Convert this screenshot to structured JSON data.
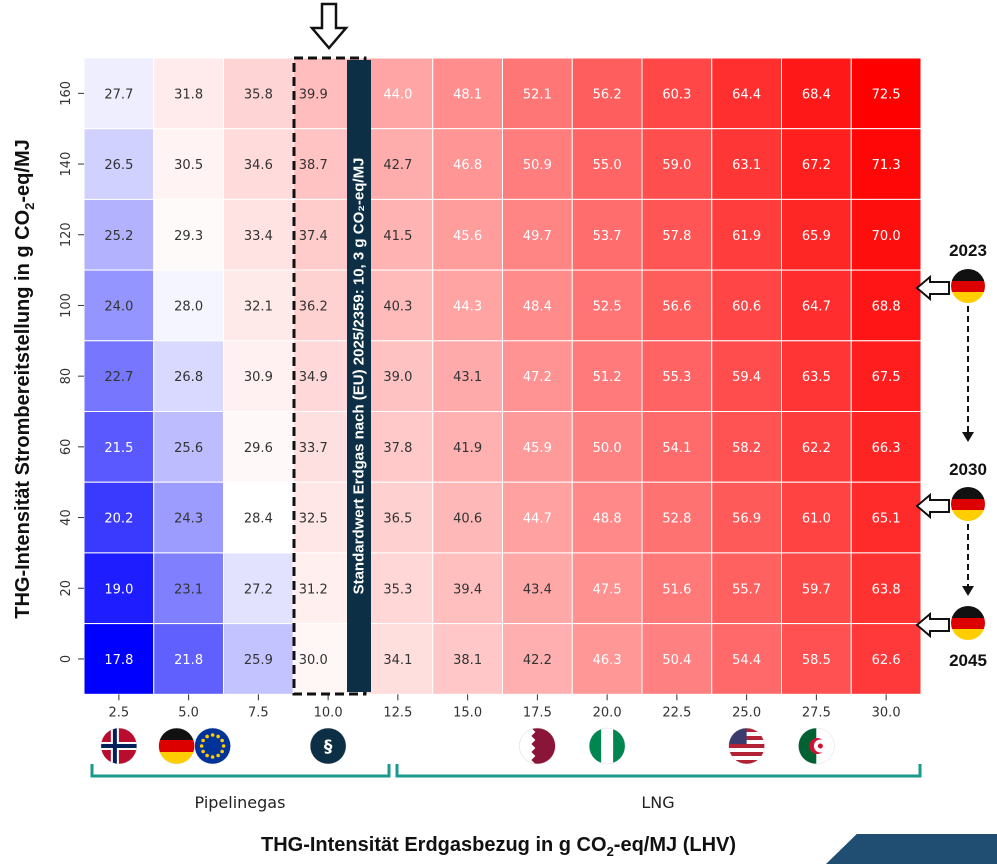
{
  "chart_data": {
    "type": "heatmap",
    "x": [
      "2.5",
      "5.0",
      "7.5",
      "10.0",
      "12.5",
      "15.0",
      "17.5",
      "20.0",
      "22.5",
      "25.0",
      "27.5",
      "30.0"
    ],
    "y": [
      "160",
      "140",
      "120",
      "100",
      "80",
      "60",
      "40",
      "20",
      "0"
    ],
    "values": [
      [
        27.7,
        31.8,
        35.8,
        39.9,
        44.0,
        48.1,
        52.1,
        56.2,
        60.3,
        64.4,
        68.4,
        72.5
      ],
      [
        26.5,
        30.5,
        34.6,
        38.7,
        42.7,
        46.8,
        50.9,
        55.0,
        59.0,
        63.1,
        67.2,
        71.3
      ],
      [
        25.2,
        29.3,
        33.4,
        37.4,
        41.5,
        45.6,
        49.7,
        53.7,
        57.8,
        61.9,
        65.9,
        70.0
      ],
      [
        24.0,
        28.0,
        32.1,
        36.2,
        40.3,
        44.3,
        48.4,
        52.5,
        56.6,
        60.6,
        64.7,
        68.8
      ],
      [
        22.7,
        26.8,
        30.9,
        34.9,
        39.0,
        43.1,
        47.2,
        51.2,
        55.3,
        59.4,
        63.5,
        67.5
      ],
      [
        21.5,
        25.6,
        29.6,
        33.7,
        37.8,
        41.9,
        45.9,
        50.0,
        54.1,
        58.2,
        62.2,
        66.3
      ],
      [
        20.2,
        24.3,
        28.4,
        32.5,
        36.5,
        40.6,
        44.7,
        48.8,
        52.8,
        56.9,
        61.0,
        65.1
      ],
      [
        19.0,
        23.1,
        27.2,
        31.2,
        35.3,
        39.4,
        43.4,
        47.5,
        51.6,
        55.7,
        59.7,
        63.8
      ],
      [
        17.8,
        21.8,
        25.9,
        30.0,
        34.1,
        38.1,
        42.2,
        46.3,
        50.4,
        54.4,
        58.5,
        62.6
      ]
    ],
    "xlabel": "THG-Intensität Erdgasbezug in g CO₂-eq/MJ (LHV)",
    "ylabel": "THG-Intensität Strombereitstellung in g CO₂-eq/MJ",
    "annotation": "Standardwert Erdgas nach (EU) 2025/2359: 10, 3 g CO₂-eq/MJ",
    "colormap": {
      "low": "#0000ff",
      "mid": "#ffffff",
      "high": "#ff0000",
      "center": 28.4
    },
    "groups": [
      {
        "label": "Pipelinegas"
      },
      {
        "label": "LNG"
      }
    ],
    "years": [
      "2023",
      "2030",
      "2045"
    ]
  },
  "flags": [
    {
      "name": "norway-flag-icon",
      "col": "2.5"
    },
    {
      "name": "germany-flag-icon",
      "col": "5.0"
    },
    {
      "name": "eu-flag-icon",
      "col": "5.0"
    },
    {
      "name": "paragraph-icon",
      "col": "10.0"
    },
    {
      "name": "qatar-flag-icon",
      "col": "17.5"
    },
    {
      "name": "nigeria-flag-icon",
      "col": "20.0"
    },
    {
      "name": "usa-flag-icon",
      "col": "25.0"
    },
    {
      "name": "algeria-flag-icon",
      "col": "27.5"
    }
  ],
  "colors": {
    "bracket": "#1a9a8e",
    "corner": "#1f4e72",
    "text_light": "#ffffff",
    "text_dark": "#333333"
  }
}
